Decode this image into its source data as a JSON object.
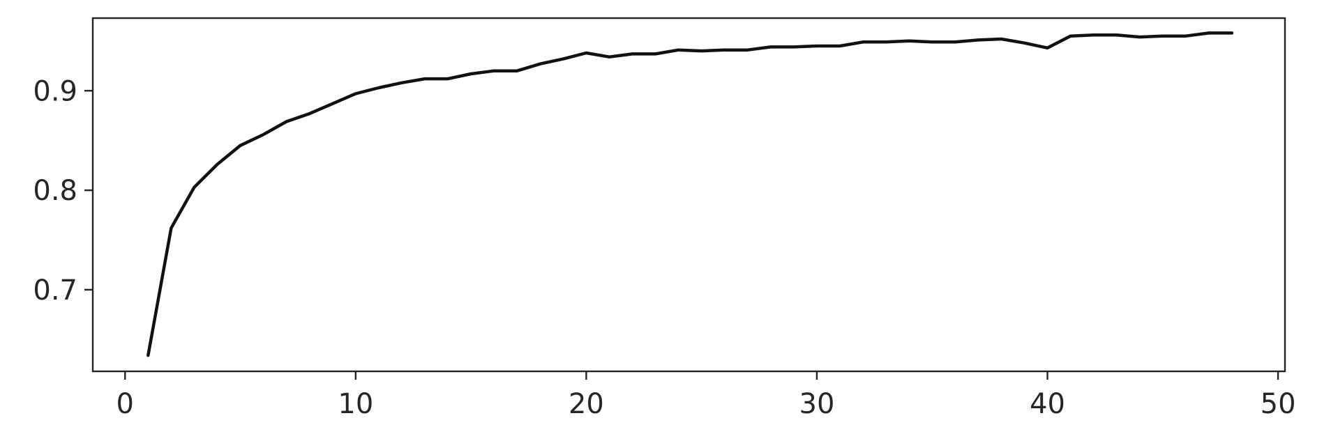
{
  "chart_data": {
    "type": "line",
    "title": "",
    "xlabel": "",
    "ylabel": "",
    "xlim": [
      -1.4,
      50.3
    ],
    "ylim": [
      0.618,
      0.973
    ],
    "xticks": [
      0,
      10,
      20,
      30,
      40,
      50
    ],
    "xtick_labels": [
      "0",
      "10",
      "20",
      "30",
      "40",
      "50"
    ],
    "yticks": [
      0.7,
      0.8,
      0.9
    ],
    "ytick_labels": [
      "0.7",
      "0.8",
      "0.9"
    ],
    "grid": false,
    "legend": "none",
    "line_color": "#111111",
    "series": [
      {
        "x": [
          1,
          2,
          3,
          4,
          5,
          6,
          7,
          8,
          9,
          10,
          11,
          12,
          13,
          14,
          15,
          16,
          17,
          18,
          19,
          20,
          21,
          22,
          23,
          24,
          25,
          26,
          27,
          28,
          29,
          30,
          31,
          32,
          33,
          34,
          35,
          36,
          37,
          38,
          39,
          40,
          41,
          42,
          43,
          44,
          45,
          46,
          47,
          48
        ],
        "y": [
          0.634,
          0.762,
          0.803,
          0.826,
          0.845,
          0.856,
          0.869,
          0.877,
          0.887,
          0.897,
          0.903,
          0.908,
          0.912,
          0.912,
          0.917,
          0.92,
          0.92,
          0.927,
          0.932,
          0.938,
          0.934,
          0.937,
          0.937,
          0.941,
          0.94,
          0.941,
          0.941,
          0.944,
          0.944,
          0.945,
          0.945,
          0.949,
          0.949,
          0.95,
          0.949,
          0.949,
          0.951,
          0.952,
          0.948,
          0.943,
          0.955,
          0.956,
          0.956,
          0.954,
          0.955,
          0.955,
          0.958,
          0.958
        ]
      }
    ]
  }
}
